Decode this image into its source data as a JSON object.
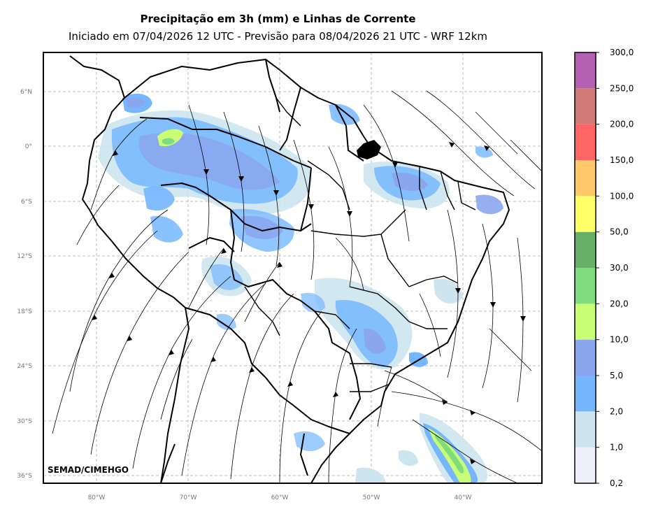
{
  "title": "Precipitação em 3h (mm) e Linhas de Corrente",
  "subtitle": "Iniciado em 07/04/2026 12 UTC - Previsão para 08/04/2026 21 UTC - WRF 12km",
  "credit": "SEMAD/CIMEHGO",
  "lat_ticks": [
    "6°N",
    "0°",
    "6°S",
    "12°S",
    "18°S",
    "24°S",
    "30°S",
    "36°S"
  ],
  "lon_ticks": [
    "80°W",
    "70°W",
    "60°W",
    "50°W",
    "40°W"
  ],
  "colorbar": {
    "labels": [
      "0,2",
      "1,0",
      "2,0",
      "5,0",
      "10,0",
      "20,0",
      "30,0",
      "50,0",
      "100,0",
      "150,0",
      "200,0",
      "250,0",
      "300,0"
    ],
    "colors": [
      "#efeffb",
      "#cde5ee",
      "#76b6ff",
      "#8aa6ef",
      "#c9fd76",
      "#7edb7e",
      "#67b067",
      "#ffff66",
      "#ffc86a",
      "#ff6565",
      "#d27979",
      "#b461b4"
    ]
  }
}
